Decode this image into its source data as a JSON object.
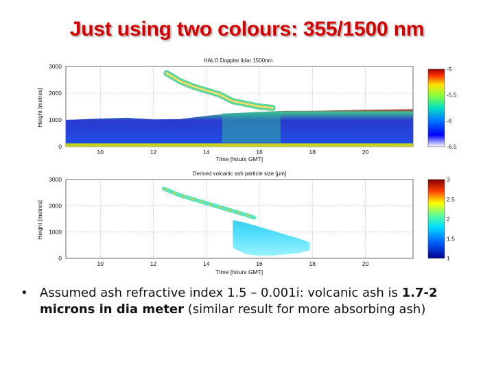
{
  "slide": {
    "title": "Just using two colours: 355/1500 nm",
    "bullet": {
      "marker": "•",
      "text_before": "Assumed ash refractive index 1.5 – 0.001i: volcanic ash is ",
      "bold_value": "1.7-2 microns in dia meter",
      "text_after": " (similar result for more absorbing ash)"
    }
  },
  "colors": {
    "title": "#d40000",
    "panel_background": "#1a2bc4",
    "colormap": [
      "#00008f",
      "#0000ff",
      "#00bfff",
      "#40ff80",
      "#ffff00",
      "#ff6000",
      "#800000"
    ]
  },
  "chart_data": [
    {
      "type": "heatmap",
      "title": "HALO Doppler lidar 1500nm",
      "xlabel": "Time [hours GMT]",
      "ylabel": "Height [metres]",
      "xlim": [
        8.7,
        21.8
      ],
      "ylim": [
        0,
        3000
      ],
      "xticks": [
        "10",
        "12",
        "14",
        "16",
        "18",
        "20"
      ],
      "yticks": [
        "0",
        "1000",
        "2000",
        "3000"
      ],
      "grid": true,
      "colorbar": {
        "ticks": [
          "-5",
          "-5.5",
          "-6",
          "-6.5"
        ],
        "range": [
          -6.5,
          -5
        ]
      },
      "features": {
        "boundary_layer": {
          "x": [
            8.7,
            10,
            11,
            12,
            13,
            14,
            15,
            16,
            17,
            18,
            19,
            20,
            21.8
          ],
          "top_m": [
            1000,
            1050,
            1080,
            1020,
            1030,
            1150,
            1250,
            1300,
            1340,
            1340,
            1360,
            1380,
            1400
          ]
        },
        "ash_layer": {
          "x": [
            12.5,
            13,
            13.5,
            14,
            14.5,
            15,
            15.5,
            16,
            16.5
          ],
          "height_m": [
            2750,
            2450,
            2250,
            2100,
            1950,
            1700,
            1600,
            1500,
            1450
          ]
        }
      }
    },
    {
      "type": "heatmap",
      "title": "Derived volcanic ash particle size [μm]",
      "xlabel": "Time [hours GMT]",
      "ylabel": "Height [metres]",
      "xlim": [
        8.7,
        21.8
      ],
      "ylim": [
        0,
        3000
      ],
      "xticks": [
        "10",
        "12",
        "14",
        "16",
        "18",
        "20"
      ],
      "yticks": [
        "0",
        "1000",
        "2000",
        "3000"
      ],
      "grid": true,
      "colorbar": {
        "ticks": [
          "3",
          "2.5",
          "2",
          "1.5",
          "1"
        ],
        "range": [
          1,
          3
        ]
      },
      "features": {
        "ash_layer": {
          "x": [
            12.4,
            13,
            13.5,
            14,
            14.5,
            15,
            15.5,
            15.8
          ],
          "height_m": [
            2650,
            2400,
            2250,
            2100,
            1950,
            1800,
            1650,
            1550
          ]
        },
        "lower_ash": {
          "x": [
            15.0,
            15.5,
            16,
            16.5,
            17,
            17.5,
            17.9
          ],
          "top_m": [
            1450,
            1350,
            1200,
            1050,
            900,
            750,
            600
          ],
          "bottom_m": [
            400,
            150,
            100,
            100,
            150,
            200,
            300
          ]
        }
      }
    }
  ]
}
